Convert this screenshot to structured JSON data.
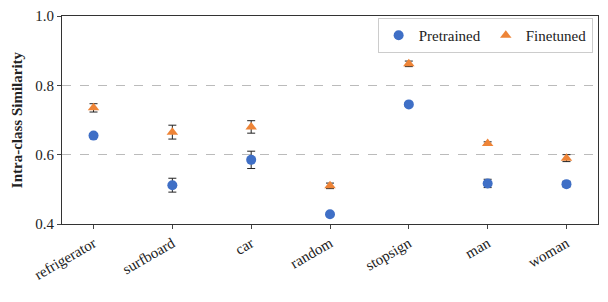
{
  "chart_data": {
    "type": "scatter",
    "y_label": "Intra-class Similarity",
    "categories": [
      "refrigerator",
      "surfboard",
      "car",
      "random",
      "stopsign",
      "man",
      "woman"
    ],
    "series": [
      {
        "name": "Pretrained",
        "color": "#3f6fc6",
        "marker": "circle",
        "values": [
          0.655,
          0.512,
          0.585,
          0.428,
          0.745,
          0.517,
          0.515
        ],
        "errors": [
          0.005,
          0.02,
          0.025,
          0.005,
          0.005,
          0.012,
          0.008
        ]
      },
      {
        "name": "Finetuned",
        "color": "#ee8437",
        "marker": "triangle-up",
        "values": [
          0.735,
          0.665,
          0.68,
          0.51,
          0.862,
          0.632,
          0.59
        ],
        "errors": [
          0.012,
          0.02,
          0.018,
          0.008,
          0.008,
          0.005,
          0.01
        ]
      }
    ],
    "ylim": [
      0.4,
      1.0
    ],
    "yticks": [
      0.4,
      0.6,
      0.8,
      {
        "value": 1.0,
        "label": "1.0"
      }
    ],
    "grid": true,
    "legend": "upper right"
  }
}
